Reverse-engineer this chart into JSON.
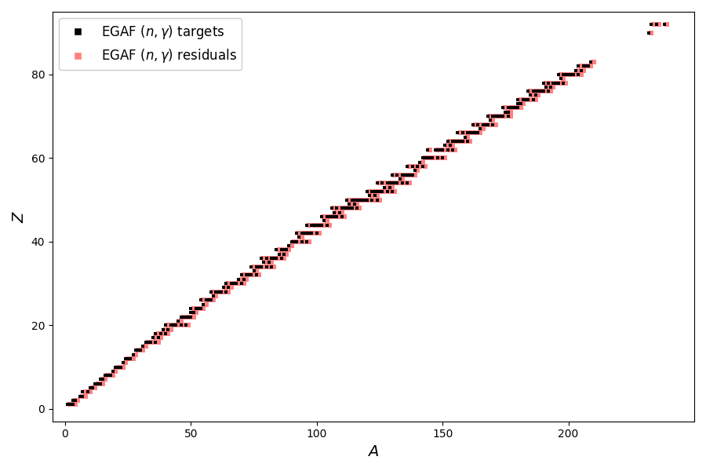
{
  "title": "",
  "xlabel": "$A$",
  "ylabel": "$Z$",
  "xlim": [
    -5,
    250
  ],
  "ylim": [
    -3,
    95
  ],
  "target_ms": 9,
  "residual_ms": 16,
  "target_color": "#000000",
  "residual_color": "#FF8080",
  "legend_target_label": "EGAF $(n,\\gamma)$ targets",
  "legend_residual_label": "EGAF $(n,\\gamma)$ residuals",
  "targets": [
    [
      1,
      1
    ],
    [
      2,
      1
    ],
    [
      3,
      1
    ],
    [
      3,
      2
    ],
    [
      4,
      2
    ],
    [
      6,
      3
    ],
    [
      7,
      3
    ],
    [
      7,
      4
    ],
    [
      9,
      4
    ],
    [
      10,
      5
    ],
    [
      11,
      5
    ],
    [
      12,
      6
    ],
    [
      13,
      6
    ],
    [
      14,
      6
    ],
    [
      14,
      7
    ],
    [
      15,
      7
    ],
    [
      16,
      8
    ],
    [
      17,
      8
    ],
    [
      18,
      8
    ],
    [
      19,
      9
    ],
    [
      20,
      10
    ],
    [
      21,
      10
    ],
    [
      22,
      10
    ],
    [
      23,
      11
    ],
    [
      24,
      12
    ],
    [
      25,
      12
    ],
    [
      26,
      12
    ],
    [
      27,
      13
    ],
    [
      28,
      14
    ],
    [
      29,
      14
    ],
    [
      30,
      14
    ],
    [
      31,
      15
    ],
    [
      32,
      16
    ],
    [
      33,
      16
    ],
    [
      34,
      16
    ],
    [
      36,
      16
    ],
    [
      35,
      17
    ],
    [
      37,
      17
    ],
    [
      36,
      18
    ],
    [
      38,
      18
    ],
    [
      40,
      18
    ],
    [
      39,
      19
    ],
    [
      41,
      19
    ],
    [
      40,
      20
    ],
    [
      42,
      20
    ],
    [
      43,
      20
    ],
    [
      44,
      20
    ],
    [
      46,
      20
    ],
    [
      48,
      20
    ],
    [
      45,
      21
    ],
    [
      46,
      22
    ],
    [
      47,
      22
    ],
    [
      48,
      22
    ],
    [
      49,
      22
    ],
    [
      50,
      22
    ],
    [
      50,
      23
    ],
    [
      51,
      23
    ],
    [
      50,
      24
    ],
    [
      52,
      24
    ],
    [
      53,
      24
    ],
    [
      54,
      24
    ],
    [
      55,
      25
    ],
    [
      54,
      26
    ],
    [
      56,
      26
    ],
    [
      57,
      26
    ],
    [
      58,
      26
    ],
    [
      59,
      27
    ],
    [
      58,
      28
    ],
    [
      60,
      28
    ],
    [
      61,
      28
    ],
    [
      62,
      28
    ],
    [
      64,
      28
    ],
    [
      63,
      29
    ],
    [
      65,
      29
    ],
    [
      64,
      30
    ],
    [
      66,
      30
    ],
    [
      67,
      30
    ],
    [
      68,
      30
    ],
    [
      70,
      30
    ],
    [
      69,
      31
    ],
    [
      71,
      31
    ],
    [
      70,
      32
    ],
    [
      72,
      32
    ],
    [
      73,
      32
    ],
    [
      74,
      32
    ],
    [
      76,
      32
    ],
    [
      75,
      33
    ],
    [
      74,
      34
    ],
    [
      76,
      34
    ],
    [
      77,
      34
    ],
    [
      78,
      34
    ],
    [
      80,
      34
    ],
    [
      82,
      34
    ],
    [
      79,
      35
    ],
    [
      81,
      35
    ],
    [
      78,
      36
    ],
    [
      80,
      36
    ],
    [
      82,
      36
    ],
    [
      83,
      36
    ],
    [
      84,
      36
    ],
    [
      86,
      36
    ],
    [
      85,
      37
    ],
    [
      87,
      37
    ],
    [
      84,
      38
    ],
    [
      86,
      38
    ],
    [
      87,
      38
    ],
    [
      88,
      38
    ],
    [
      89,
      39
    ],
    [
      90,
      40
    ],
    [
      91,
      40
    ],
    [
      92,
      40
    ],
    [
      94,
      40
    ],
    [
      96,
      40
    ],
    [
      93,
      41
    ],
    [
      92,
      42
    ],
    [
      94,
      42
    ],
    [
      95,
      42
    ],
    [
      96,
      42
    ],
    [
      97,
      42
    ],
    [
      98,
      42
    ],
    [
      100,
      42
    ],
    [
      96,
      44
    ],
    [
      98,
      44
    ],
    [
      99,
      44
    ],
    [
      100,
      44
    ],
    [
      101,
      44
    ],
    [
      102,
      44
    ],
    [
      104,
      44
    ],
    [
      103,
      45
    ],
    [
      102,
      46
    ],
    [
      104,
      46
    ],
    [
      105,
      46
    ],
    [
      106,
      46
    ],
    [
      107,
      46
    ],
    [
      108,
      46
    ],
    [
      110,
      46
    ],
    [
      107,
      47
    ],
    [
      109,
      47
    ],
    [
      106,
      48
    ],
    [
      108,
      48
    ],
    [
      110,
      48
    ],
    [
      111,
      48
    ],
    [
      112,
      48
    ],
    [
      113,
      48
    ],
    [
      114,
      48
    ],
    [
      116,
      48
    ],
    [
      113,
      49
    ],
    [
      115,
      49
    ],
    [
      112,
      50
    ],
    [
      114,
      50
    ],
    [
      115,
      50
    ],
    [
      116,
      50
    ],
    [
      117,
      50
    ],
    [
      118,
      50
    ],
    [
      119,
      50
    ],
    [
      120,
      50
    ],
    [
      122,
      50
    ],
    [
      124,
      50
    ],
    [
      121,
      51
    ],
    [
      123,
      51
    ],
    [
      120,
      52
    ],
    [
      122,
      52
    ],
    [
      123,
      52
    ],
    [
      124,
      52
    ],
    [
      125,
      52
    ],
    [
      126,
      52
    ],
    [
      128,
      52
    ],
    [
      130,
      52
    ],
    [
      127,
      53
    ],
    [
      129,
      53
    ],
    [
      124,
      54
    ],
    [
      126,
      54
    ],
    [
      128,
      54
    ],
    [
      129,
      54
    ],
    [
      130,
      54
    ],
    [
      131,
      54
    ],
    [
      132,
      54
    ],
    [
      134,
      54
    ],
    [
      136,
      54
    ],
    [
      133,
      55
    ],
    [
      130,
      56
    ],
    [
      132,
      56
    ],
    [
      134,
      56
    ],
    [
      135,
      56
    ],
    [
      136,
      56
    ],
    [
      137,
      56
    ],
    [
      138,
      56
    ],
    [
      139,
      57
    ],
    [
      136,
      58
    ],
    [
      138,
      58
    ],
    [
      140,
      58
    ],
    [
      142,
      58
    ],
    [
      141,
      59
    ],
    [
      142,
      60
    ],
    [
      143,
      60
    ],
    [
      144,
      60
    ],
    [
      145,
      60
    ],
    [
      146,
      60
    ],
    [
      148,
      60
    ],
    [
      150,
      60
    ],
    [
      144,
      62
    ],
    [
      147,
      62
    ],
    [
      148,
      62
    ],
    [
      149,
      62
    ],
    [
      150,
      62
    ],
    [
      152,
      62
    ],
    [
      154,
      62
    ],
    [
      151,
      63
    ],
    [
      153,
      63
    ],
    [
      152,
      64
    ],
    [
      154,
      64
    ],
    [
      155,
      64
    ],
    [
      156,
      64
    ],
    [
      157,
      64
    ],
    [
      158,
      64
    ],
    [
      160,
      64
    ],
    [
      159,
      65
    ],
    [
      156,
      66
    ],
    [
      158,
      66
    ],
    [
      160,
      66
    ],
    [
      161,
      66
    ],
    [
      162,
      66
    ],
    [
      163,
      66
    ],
    [
      164,
      66
    ],
    [
      165,
      67
    ],
    [
      162,
      68
    ],
    [
      164,
      68
    ],
    [
      166,
      68
    ],
    [
      167,
      68
    ],
    [
      168,
      68
    ],
    [
      170,
      68
    ],
    [
      169,
      69
    ],
    [
      168,
      70
    ],
    [
      170,
      70
    ],
    [
      171,
      70
    ],
    [
      172,
      70
    ],
    [
      173,
      70
    ],
    [
      174,
      70
    ],
    [
      176,
      70
    ],
    [
      175,
      71
    ],
    [
      176,
      71
    ],
    [
      174,
      72
    ],
    [
      176,
      72
    ],
    [
      177,
      72
    ],
    [
      178,
      72
    ],
    [
      179,
      72
    ],
    [
      180,
      72
    ],
    [
      180,
      73
    ],
    [
      181,
      73
    ],
    [
      180,
      74
    ],
    [
      182,
      74
    ],
    [
      183,
      74
    ],
    [
      184,
      74
    ],
    [
      186,
      74
    ],
    [
      185,
      75
    ],
    [
      187,
      75
    ],
    [
      184,
      76
    ],
    [
      186,
      76
    ],
    [
      187,
      76
    ],
    [
      188,
      76
    ],
    [
      189,
      76
    ],
    [
      190,
      76
    ],
    [
      192,
      76
    ],
    [
      191,
      77
    ],
    [
      193,
      77
    ],
    [
      190,
      78
    ],
    [
      192,
      78
    ],
    [
      194,
      78
    ],
    [
      195,
      78
    ],
    [
      196,
      78
    ],
    [
      198,
      78
    ],
    [
      197,
      79
    ],
    [
      196,
      80
    ],
    [
      198,
      80
    ],
    [
      199,
      80
    ],
    [
      200,
      80
    ],
    [
      201,
      80
    ],
    [
      202,
      80
    ],
    [
      204,
      80
    ],
    [
      203,
      81
    ],
    [
      205,
      81
    ],
    [
      204,
      82
    ],
    [
      206,
      82
    ],
    [
      207,
      82
    ],
    [
      208,
      82
    ],
    [
      209,
      83
    ],
    [
      232,
      90
    ],
    [
      233,
      92
    ],
    [
      235,
      92
    ],
    [
      238,
      92
    ]
  ],
  "residuals": [
    [
      2,
      1
    ],
    [
      3,
      1
    ],
    [
      4,
      1
    ],
    [
      4,
      2
    ],
    [
      5,
      2
    ],
    [
      7,
      3
    ],
    [
      8,
      3
    ],
    [
      8,
      4
    ],
    [
      10,
      4
    ],
    [
      11,
      5
    ],
    [
      12,
      5
    ],
    [
      13,
      6
    ],
    [
      14,
      6
    ],
    [
      15,
      6
    ],
    [
      15,
      7
    ],
    [
      16,
      7
    ],
    [
      17,
      8
    ],
    [
      18,
      8
    ],
    [
      19,
      8
    ],
    [
      20,
      9
    ],
    [
      21,
      10
    ],
    [
      22,
      10
    ],
    [
      23,
      10
    ],
    [
      24,
      11
    ],
    [
      25,
      12
    ],
    [
      26,
      12
    ],
    [
      27,
      12
    ],
    [
      28,
      13
    ],
    [
      29,
      14
    ],
    [
      30,
      14
    ],
    [
      31,
      14
    ],
    [
      32,
      15
    ],
    [
      33,
      16
    ],
    [
      34,
      16
    ],
    [
      35,
      16
    ],
    [
      37,
      16
    ],
    [
      36,
      17
    ],
    [
      38,
      17
    ],
    [
      37,
      18
    ],
    [
      39,
      18
    ],
    [
      41,
      18
    ],
    [
      40,
      19
    ],
    [
      42,
      19
    ],
    [
      41,
      20
    ],
    [
      43,
      20
    ],
    [
      44,
      20
    ],
    [
      45,
      20
    ],
    [
      47,
      20
    ],
    [
      49,
      20
    ],
    [
      46,
      21
    ],
    [
      47,
      22
    ],
    [
      48,
      22
    ],
    [
      49,
      22
    ],
    [
      50,
      22
    ],
    [
      51,
      22
    ],
    [
      51,
      23
    ],
    [
      52,
      23
    ],
    [
      51,
      24
    ],
    [
      53,
      24
    ],
    [
      54,
      24
    ],
    [
      55,
      24
    ],
    [
      56,
      25
    ],
    [
      55,
      26
    ],
    [
      57,
      26
    ],
    [
      58,
      26
    ],
    [
      59,
      26
    ],
    [
      60,
      27
    ],
    [
      59,
      28
    ],
    [
      61,
      28
    ],
    [
      62,
      28
    ],
    [
      63,
      28
    ],
    [
      65,
      28
    ],
    [
      64,
      29
    ],
    [
      66,
      29
    ],
    [
      65,
      30
    ],
    [
      67,
      30
    ],
    [
      68,
      30
    ],
    [
      69,
      30
    ],
    [
      71,
      30
    ],
    [
      70,
      31
    ],
    [
      72,
      31
    ],
    [
      71,
      32
    ],
    [
      73,
      32
    ],
    [
      74,
      32
    ],
    [
      75,
      32
    ],
    [
      77,
      32
    ],
    [
      76,
      33
    ],
    [
      75,
      34
    ],
    [
      77,
      34
    ],
    [
      78,
      34
    ],
    [
      79,
      34
    ],
    [
      81,
      34
    ],
    [
      83,
      34
    ],
    [
      80,
      35
    ],
    [
      82,
      35
    ],
    [
      79,
      36
    ],
    [
      81,
      36
    ],
    [
      83,
      36
    ],
    [
      84,
      36
    ],
    [
      85,
      36
    ],
    [
      87,
      36
    ],
    [
      86,
      37
    ],
    [
      88,
      37
    ],
    [
      85,
      38
    ],
    [
      87,
      38
    ],
    [
      88,
      38
    ],
    [
      89,
      38
    ],
    [
      90,
      39
    ],
    [
      91,
      40
    ],
    [
      92,
      40
    ],
    [
      93,
      40
    ],
    [
      95,
      40
    ],
    [
      97,
      40
    ],
    [
      94,
      41
    ],
    [
      93,
      42
    ],
    [
      95,
      42
    ],
    [
      96,
      42
    ],
    [
      97,
      42
    ],
    [
      98,
      42
    ],
    [
      99,
      42
    ],
    [
      101,
      42
    ],
    [
      97,
      44
    ],
    [
      99,
      44
    ],
    [
      100,
      44
    ],
    [
      101,
      44
    ],
    [
      102,
      44
    ],
    [
      103,
      44
    ],
    [
      105,
      44
    ],
    [
      104,
      45
    ],
    [
      103,
      46
    ],
    [
      105,
      46
    ],
    [
      106,
      46
    ],
    [
      107,
      46
    ],
    [
      108,
      46
    ],
    [
      109,
      46
    ],
    [
      111,
      46
    ],
    [
      108,
      47
    ],
    [
      110,
      47
    ],
    [
      107,
      48
    ],
    [
      109,
      48
    ],
    [
      111,
      48
    ],
    [
      112,
      48
    ],
    [
      113,
      48
    ],
    [
      114,
      48
    ],
    [
      115,
      48
    ],
    [
      117,
      48
    ],
    [
      114,
      49
    ],
    [
      116,
      49
    ],
    [
      113,
      50
    ],
    [
      115,
      50
    ],
    [
      116,
      50
    ],
    [
      117,
      50
    ],
    [
      118,
      50
    ],
    [
      119,
      50
    ],
    [
      120,
      50
    ],
    [
      121,
      50
    ],
    [
      123,
      50
    ],
    [
      125,
      50
    ],
    [
      122,
      51
    ],
    [
      124,
      51
    ],
    [
      121,
      52
    ],
    [
      123,
      52
    ],
    [
      124,
      52
    ],
    [
      125,
      52
    ],
    [
      126,
      52
    ],
    [
      127,
      52
    ],
    [
      129,
      52
    ],
    [
      131,
      52
    ],
    [
      128,
      53
    ],
    [
      130,
      53
    ],
    [
      125,
      54
    ],
    [
      127,
      54
    ],
    [
      129,
      54
    ],
    [
      130,
      54
    ],
    [
      131,
      54
    ],
    [
      132,
      54
    ],
    [
      133,
      54
    ],
    [
      135,
      54
    ],
    [
      137,
      54
    ],
    [
      134,
      55
    ],
    [
      131,
      56
    ],
    [
      133,
      56
    ],
    [
      135,
      56
    ],
    [
      136,
      56
    ],
    [
      137,
      56
    ],
    [
      138,
      56
    ],
    [
      139,
      56
    ],
    [
      140,
      57
    ],
    [
      137,
      58
    ],
    [
      139,
      58
    ],
    [
      141,
      58
    ],
    [
      143,
      58
    ],
    [
      142,
      59
    ],
    [
      143,
      60
    ],
    [
      144,
      60
    ],
    [
      145,
      60
    ],
    [
      146,
      60
    ],
    [
      147,
      60
    ],
    [
      149,
      60
    ],
    [
      151,
      60
    ],
    [
      145,
      62
    ],
    [
      148,
      62
    ],
    [
      149,
      62
    ],
    [
      150,
      62
    ],
    [
      151,
      62
    ],
    [
      153,
      62
    ],
    [
      155,
      62
    ],
    [
      152,
      63
    ],
    [
      154,
      63
    ],
    [
      153,
      64
    ],
    [
      155,
      64
    ],
    [
      156,
      64
    ],
    [
      157,
      64
    ],
    [
      158,
      64
    ],
    [
      159,
      64
    ],
    [
      161,
      64
    ],
    [
      160,
      65
    ],
    [
      157,
      66
    ],
    [
      159,
      66
    ],
    [
      161,
      66
    ],
    [
      162,
      66
    ],
    [
      163,
      66
    ],
    [
      164,
      66
    ],
    [
      165,
      66
    ],
    [
      166,
      67
    ],
    [
      163,
      68
    ],
    [
      165,
      68
    ],
    [
      167,
      68
    ],
    [
      168,
      68
    ],
    [
      169,
      68
    ],
    [
      171,
      68
    ],
    [
      170,
      69
    ],
    [
      169,
      70
    ],
    [
      171,
      70
    ],
    [
      172,
      70
    ],
    [
      173,
      70
    ],
    [
      174,
      70
    ],
    [
      175,
      70
    ],
    [
      177,
      70
    ],
    [
      176,
      71
    ],
    [
      177,
      71
    ],
    [
      175,
      72
    ],
    [
      177,
      72
    ],
    [
      178,
      72
    ],
    [
      179,
      72
    ],
    [
      180,
      72
    ],
    [
      181,
      72
    ],
    [
      181,
      73
    ],
    [
      182,
      73
    ],
    [
      181,
      74
    ],
    [
      183,
      74
    ],
    [
      184,
      74
    ],
    [
      185,
      74
    ],
    [
      187,
      74
    ],
    [
      186,
      75
    ],
    [
      188,
      75
    ],
    [
      185,
      76
    ],
    [
      187,
      76
    ],
    [
      188,
      76
    ],
    [
      189,
      76
    ],
    [
      190,
      76
    ],
    [
      191,
      76
    ],
    [
      193,
      76
    ],
    [
      192,
      77
    ],
    [
      194,
      77
    ],
    [
      191,
      78
    ],
    [
      193,
      78
    ],
    [
      195,
      78
    ],
    [
      196,
      78
    ],
    [
      197,
      78
    ],
    [
      199,
      78
    ],
    [
      198,
      79
    ],
    [
      197,
      80
    ],
    [
      199,
      80
    ],
    [
      200,
      80
    ],
    [
      201,
      80
    ],
    [
      202,
      80
    ],
    [
      203,
      80
    ],
    [
      205,
      80
    ],
    [
      204,
      81
    ],
    [
      206,
      81
    ],
    [
      205,
      82
    ],
    [
      207,
      82
    ],
    [
      208,
      82
    ],
    [
      209,
      82
    ],
    [
      210,
      83
    ],
    [
      233,
      90
    ],
    [
      234,
      92
    ],
    [
      236,
      92
    ],
    [
      239,
      92
    ]
  ]
}
